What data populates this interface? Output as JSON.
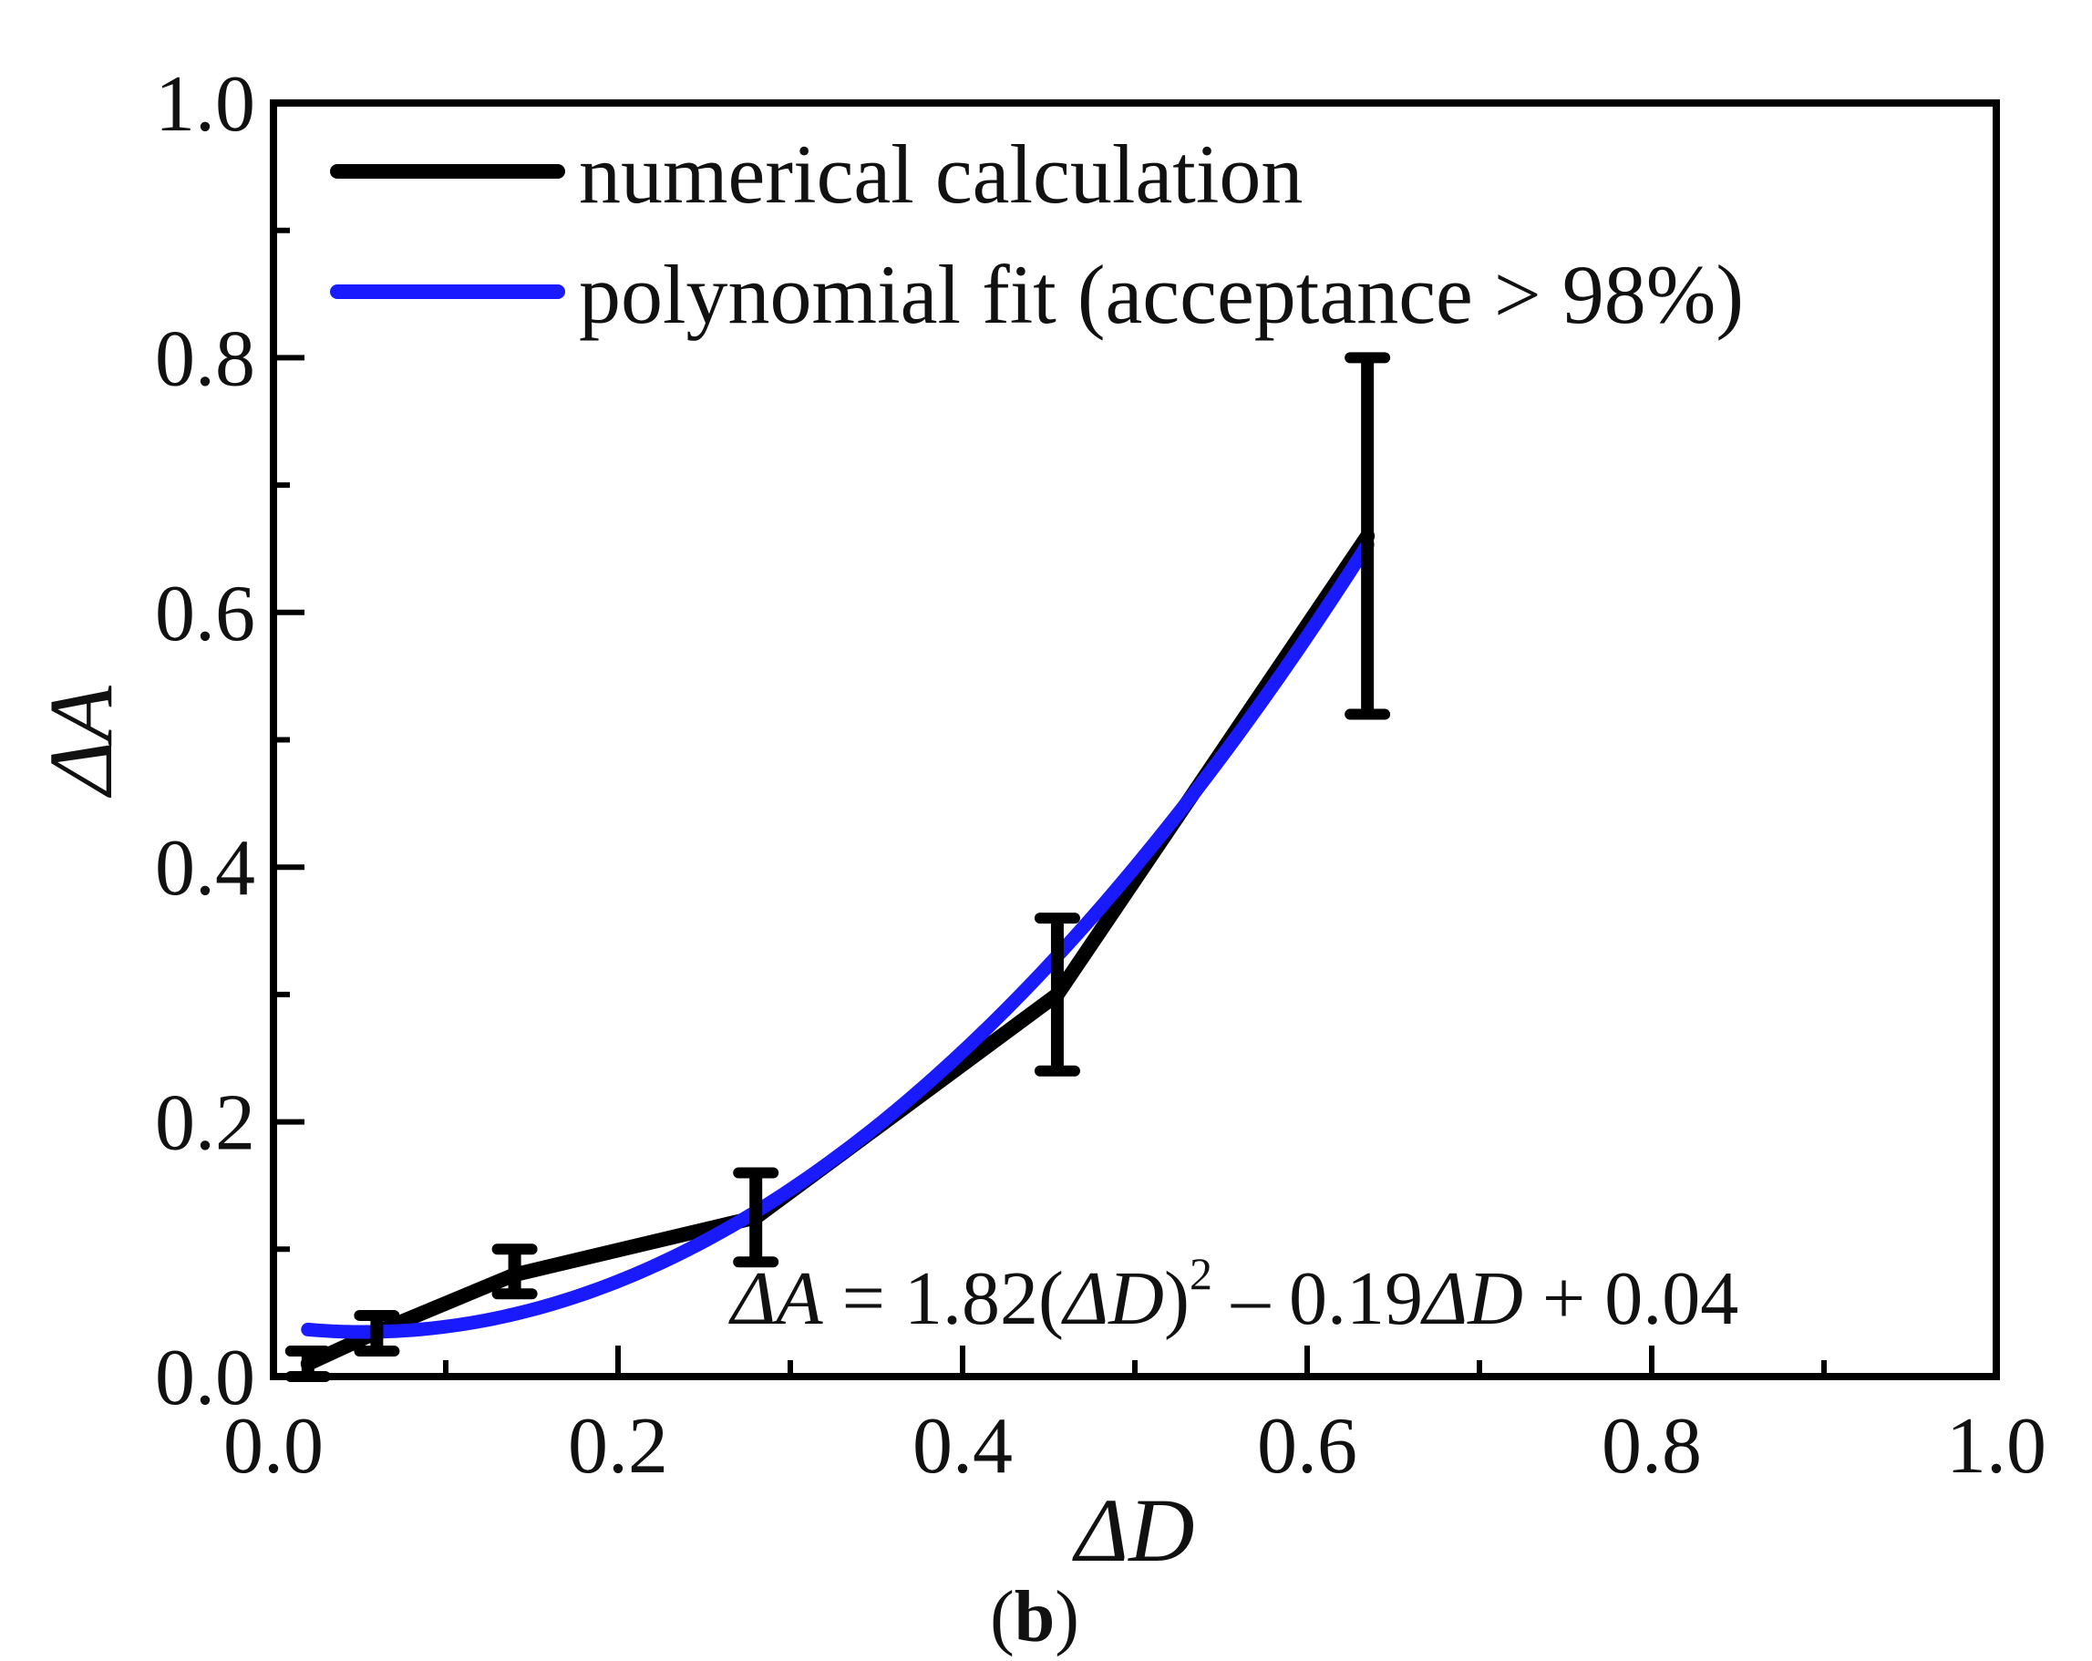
{
  "chart_data": {
    "type": "line",
    "title": "",
    "xlabel": "ΔD",
    "ylabel": "ΔA",
    "xlim": [
      0.0,
      1.0
    ],
    "ylim": [
      0.0,
      1.0
    ],
    "x_ticks": [
      "0.0",
      "0.2",
      "0.4",
      "0.6",
      "0.8",
      "1.0"
    ],
    "y_ticks": [
      "0.0",
      "0.2",
      "0.4",
      "0.6",
      "0.8",
      "1.0"
    ],
    "grid": false,
    "legend_position": "top-left",
    "series": [
      {
        "name": "numerical calculation",
        "color": "#000000",
        "x": [
          0.02,
          0.06,
          0.14,
          0.28,
          0.455,
          0.635
        ],
        "y": [
          0.01,
          0.035,
          0.08,
          0.125,
          0.3,
          0.66
        ],
        "err_low": [
          0.0,
          0.02,
          0.065,
          0.09,
          0.24,
          0.52
        ],
        "err_high": [
          0.02,
          0.048,
          0.1,
          0.16,
          0.36,
          0.8
        ]
      },
      {
        "name": "polynomial fit (acceptance > 98%)",
        "color": "#1a1aff",
        "type": "polynomial",
        "coefficients": {
          "a2": 1.82,
          "a1": -0.19,
          "a0": 0.04
        },
        "x_range": [
          0.02,
          0.635
        ]
      }
    ],
    "annotation": {
      "lhs": "ΔA",
      "eq1": " = 1.82(",
      "dd1": "ΔD",
      "close_paren": ")",
      "exponent": "2",
      "eq2": " – 0.19",
      "dd2": "ΔD",
      "eq3": " + 0.04"
    },
    "caption": {
      "open": "(",
      "letter": "b",
      "close": ")"
    }
  }
}
